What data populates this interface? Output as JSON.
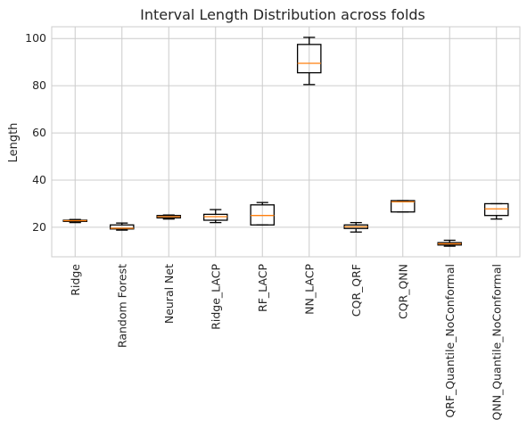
{
  "chart_data": {
    "type": "boxplot",
    "title": "Interval Length Distribution across folds",
    "xlabel": "",
    "ylabel": "Length",
    "ylim": [
      7.5,
      105
    ],
    "yticks": [
      20,
      40,
      60,
      80,
      100
    ],
    "grid": true,
    "colors": {
      "box": "#000000",
      "median": "#ff7f0e",
      "grid": "#cccccc"
    },
    "categories": [
      "Ridge",
      "Random Forest",
      "Neural Net",
      "Ridge_LACP",
      "RF_LACP",
      "NN_LACP",
      "CQR_QRF",
      "CQR_QNN",
      "QRF_Quantile_NoConformal",
      "QNN_Quantile_NoConformal"
    ],
    "boxes": [
      {
        "whislo": 22.0,
        "q1": 22.5,
        "med": 22.8,
        "q3": 23.0,
        "whishi": 23.3
      },
      {
        "whislo": 18.8,
        "q1": 19.3,
        "med": 19.6,
        "q3": 21.0,
        "whishi": 21.8
      },
      {
        "whislo": 23.5,
        "q1": 24.0,
        "med": 24.5,
        "q3": 25.0,
        "whishi": 25.2
      },
      {
        "whislo": 22.0,
        "q1": 23.0,
        "med": 24.5,
        "q3": 25.5,
        "whishi": 27.5
      },
      {
        "whislo": 21.0,
        "q1": 21.0,
        "med": 25.0,
        "q3": 29.5,
        "whishi": 30.5
      },
      {
        "whislo": 80.5,
        "q1": 85.5,
        "med": 89.5,
        "q3": 97.5,
        "whishi": 100.5
      },
      {
        "whislo": 18.0,
        "q1": 19.5,
        "med": 20.2,
        "q3": 21.0,
        "whishi": 22.0
      },
      {
        "whislo": 26.5,
        "q1": 26.5,
        "med": 30.8,
        "q3": 31.3,
        "whishi": 31.3
      },
      {
        "whislo": 12.0,
        "q1": 12.5,
        "med": 13.0,
        "q3": 13.5,
        "whishi": 14.5
      },
      {
        "whislo": 23.5,
        "q1": 25.0,
        "med": 27.8,
        "q3": 30.0,
        "whishi": 30.0
      }
    ]
  }
}
